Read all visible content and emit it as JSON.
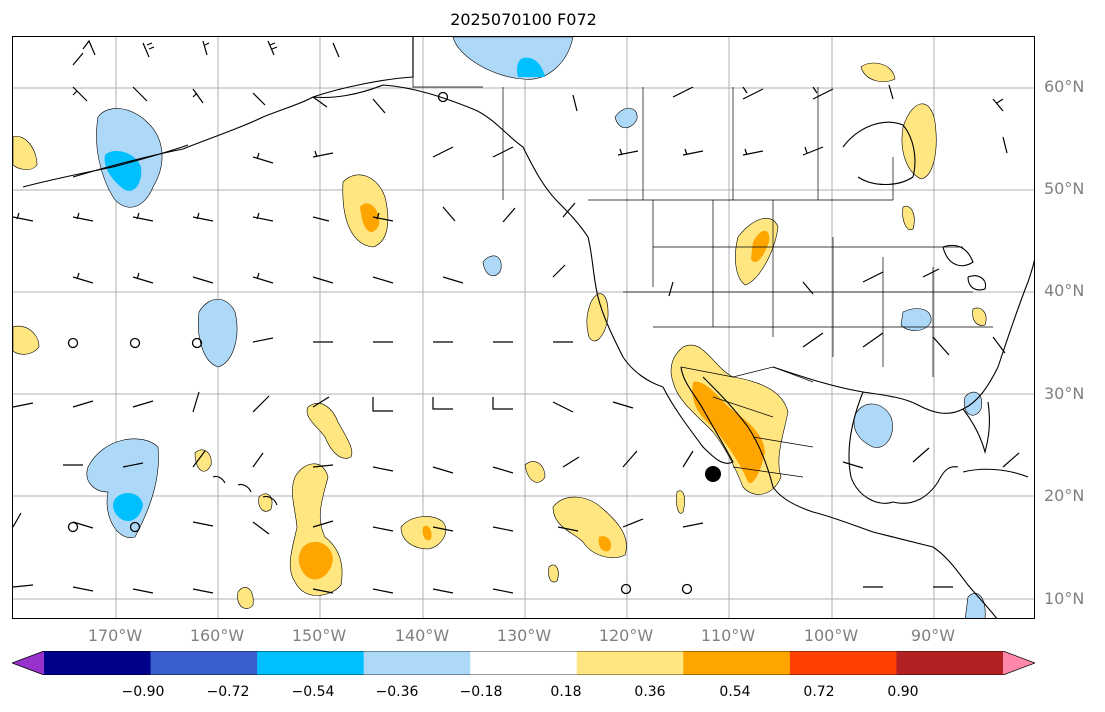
{
  "title": "2025070100 F072",
  "lat_labels": [
    "60°N",
    "50°N",
    "40°N",
    "30°N",
    "20°N",
    "10°N"
  ],
  "lon_labels": [
    "170°W",
    "160°W",
    "150°W",
    "140°W",
    "130°W",
    "120°W",
    "110°W",
    "100°W",
    "90°W"
  ],
  "colorbar": {
    "ticks": [
      "−0.90",
      "−0.72",
      "−0.54",
      "−0.36",
      "−0.18",
      "0.18",
      "0.36",
      "0.54",
      "0.72",
      "0.90"
    ],
    "colors": [
      "#9932cc",
      "#00008b",
      "#3a5fcd",
      "#00bfff",
      "#add8f7",
      "#ffffff",
      "#ffe680",
      "#ffa500",
      "#ff4000",
      "#b22222",
      "#ff88aa"
    ]
  },
  "map": {
    "projection": "plate-carree",
    "extent_lon": [
      -180,
      -80
    ],
    "extent_lat": [
      7,
      64
    ],
    "gridlines": true,
    "field_colors": {
      "neg_weak": "#add8f7",
      "neg_mod": "#00bfff",
      "pos_weak": "#ffe680",
      "pos_mod": "#ffa500",
      "coast": "#000000"
    },
    "marker": "storm-center"
  }
}
